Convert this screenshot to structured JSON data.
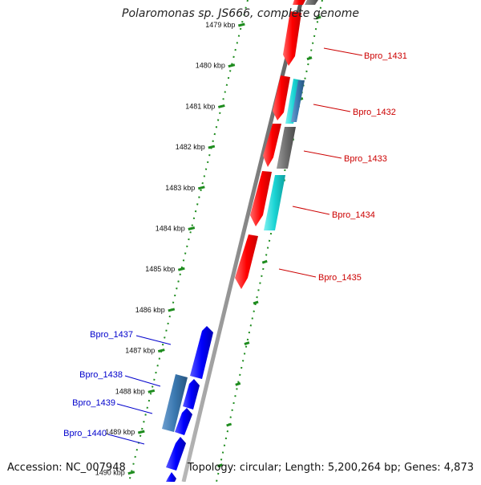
{
  "title": "Polaromonas sp. JS666, complete genome",
  "footer": {
    "accession": "Accession: NC_007948",
    "summary": "Topology: circular; Length: 5,200,264 bp; Genes: 4,873"
  },
  "ticks": [
    {
      "label": "1479 kbp"
    },
    {
      "label": "1480 kbp"
    },
    {
      "label": "1481 kbp"
    },
    {
      "label": "1482 kbp"
    },
    {
      "label": "1483 kbp"
    },
    {
      "label": "1484 kbp"
    },
    {
      "label": "1485 kbp"
    },
    {
      "label": "1486 kbp"
    },
    {
      "label": "1487 kbp"
    },
    {
      "label": "1488 kbp"
    },
    {
      "label": "1489 kbp"
    },
    {
      "label": "1490 kbp"
    }
  ],
  "gene_labels_right": [
    {
      "text": "Bpro_1431"
    },
    {
      "text": "Bpro_1432"
    },
    {
      "text": "Bpro_1433"
    },
    {
      "text": "Bpro_1434"
    },
    {
      "text": "Bpro_1435"
    }
  ],
  "gene_labels_left": [
    {
      "text": "Bpro_1437"
    },
    {
      "text": "Bpro_1438"
    },
    {
      "text": "Bpro_1439"
    },
    {
      "text": "Bpro_1440"
    }
  ],
  "colors": {
    "forward_gene": "#ff1a1a",
    "reverse_gene": "#1a1aff",
    "cyan_gene": "#19d4d4",
    "gray_gene": "#6e6e6e",
    "steel_gene": "#3a78b0",
    "tick": "#1e8c1e",
    "backbone": "#8a8a8a",
    "right_label": "#cc0000",
    "left_label": "#0000cc"
  }
}
